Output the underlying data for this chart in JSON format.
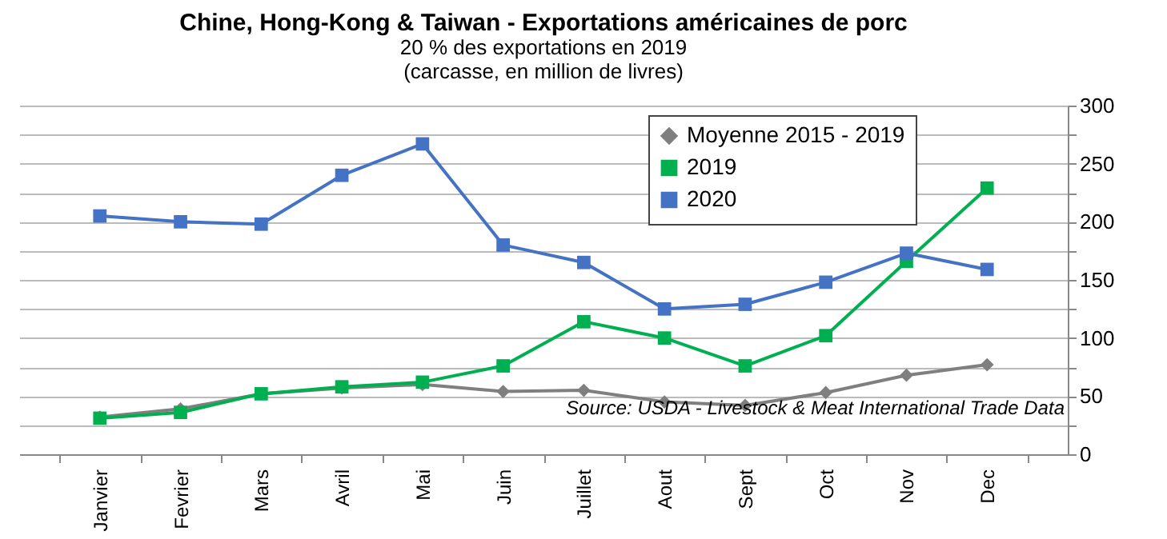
{
  "chart_data": {
    "type": "line",
    "title": "Chine, Hong-Kong & Taiwan - Exportations américaines de porc",
    "subtitle": "20 % des exportations en 2019\n(carcasse, en million de livres)",
    "categories": [
      "Janvier",
      "Fevrier",
      "Mars",
      "Avril",
      "Mai",
      "Juin",
      "Juillet",
      "Aout",
      "Sept",
      "Oct",
      "Nov",
      "Dec"
    ],
    "series": [
      {
        "name": "Moyenne 2015 - 2019",
        "color": "#7f7f7f",
        "marker": "diamond",
        "values": [
          32,
          39,
          52,
          57,
          60,
          54,
          55,
          45,
          42,
          53,
          68,
          77
        ]
      },
      {
        "name": "2019",
        "color": "#00b050",
        "marker": "square",
        "values": [
          31,
          36,
          52,
          58,
          62,
          76,
          114,
          100,
          76,
          102,
          166,
          229
        ]
      },
      {
        "name": "2020",
        "color": "#4472c4",
        "marker": "square",
        "values": [
          205,
          200,
          198,
          240,
          267,
          180,
          165,
          125,
          129,
          148,
          173,
          159
        ]
      }
    ],
    "ylim": [
      0,
      300
    ],
    "yticks": [
      0,
      {
        "value": 25,
        "label": null
      },
      50,
      {
        "value": 75,
        "label": null
      },
      100,
      {
        "value": 125,
        "label": null
      },
      150,
      {
        "value": 175,
        "label": null
      },
      200,
      {
        "value": 225,
        "label": null
      },
      250,
      {
        "value": 275,
        "label": null
      },
      300
    ],
    "grid": "y",
    "legend": "top right",
    "line_style": "solid",
    "annotations": [
      "Source: USDA - Livestock & Meat International Trade Data"
    ]
  }
}
